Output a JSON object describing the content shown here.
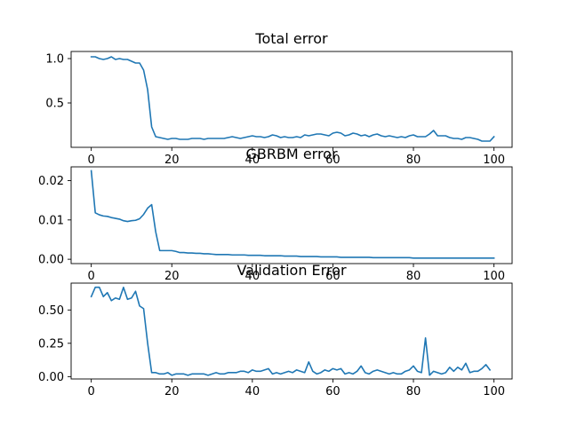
{
  "chart_data": [
    {
      "type": "line",
      "title": "Total error",
      "xlabel": "",
      "ylabel": "",
      "xlim": [
        -5,
        104.5
      ],
      "ylim": [
        0.0,
        1.08
      ],
      "xticks": [
        0,
        20,
        40,
        60,
        80,
        100
      ],
      "yticks": [
        0.5,
        1.0
      ],
      "ytick_labels": [
        "0.5",
        "1.0"
      ],
      "grid": false,
      "color": "#1f77b4",
      "series": [
        {
          "values": [
            1.02,
            1.02,
            1.0,
            0.99,
            1.0,
            1.02,
            0.99,
            1.0,
            0.99,
            0.99,
            0.97,
            0.95,
            0.95,
            0.87,
            0.65,
            0.23,
            0.12,
            0.11,
            0.1,
            0.09,
            0.1,
            0.1,
            0.09,
            0.09,
            0.09,
            0.1,
            0.1,
            0.1,
            0.09,
            0.1,
            0.1,
            0.1,
            0.1,
            0.1,
            0.11,
            0.12,
            0.11,
            0.1,
            0.11,
            0.12,
            0.13,
            0.12,
            0.12,
            0.11,
            0.12,
            0.14,
            0.13,
            0.11,
            0.12,
            0.11,
            0.11,
            0.12,
            0.11,
            0.14,
            0.13,
            0.14,
            0.15,
            0.15,
            0.14,
            0.13,
            0.16,
            0.17,
            0.16,
            0.13,
            0.14,
            0.16,
            0.15,
            0.13,
            0.14,
            0.12,
            0.14,
            0.15,
            0.13,
            0.12,
            0.13,
            0.12,
            0.11,
            0.12,
            0.11,
            0.13,
            0.14,
            0.12,
            0.12,
            0.12,
            0.15,
            0.19,
            0.13,
            0.13,
            0.13,
            0.11,
            0.1,
            0.1,
            0.09,
            0.11,
            0.11,
            0.1,
            0.09,
            0.07,
            0.07,
            0.07,
            0.12
          ]
        }
      ]
    },
    {
      "type": "line",
      "title": "GBRBM error",
      "xlabel": "",
      "ylabel": "",
      "xlim": [
        -5,
        104.5
      ],
      "ylim": [
        -0.0011,
        0.0235
      ],
      "xticks": [
        0,
        20,
        40,
        60,
        80,
        100
      ],
      "yticks": [
        0.0,
        0.01,
        0.02
      ],
      "ytick_labels": [
        "0.00",
        "0.01",
        "0.02"
      ],
      "grid": false,
      "color": "#1f77b4",
      "series": [
        {
          "values": [
            0.0225,
            0.0118,
            0.0113,
            0.011,
            0.0109,
            0.0106,
            0.0104,
            0.0102,
            0.0098,
            0.0096,
            0.0098,
            0.0099,
            0.0103,
            0.0114,
            0.013,
            0.0139,
            0.007,
            0.0022,
            0.0022,
            0.0022,
            0.0022,
            0.002,
            0.0017,
            0.0017,
            0.0016,
            0.0016,
            0.0015,
            0.0015,
            0.0014,
            0.0014,
            0.0013,
            0.0012,
            0.0012,
            0.0012,
            0.0012,
            0.0011,
            0.0011,
            0.0011,
            0.0011,
            0.001,
            0.001,
            0.001,
            0.001,
            0.0009,
            0.0009,
            0.0009,
            0.0009,
            0.0009,
            0.0008,
            0.0008,
            0.0008,
            0.0008,
            0.0007,
            0.0007,
            0.0007,
            0.0007,
            0.0007,
            0.0006,
            0.0006,
            0.0006,
            0.0006,
            0.0006,
            0.0005,
            0.0005,
            0.0005,
            0.0005,
            0.0005,
            0.0005,
            0.0005,
            0.0005,
            0.0004,
            0.0004,
            0.0004,
            0.0004,
            0.0004,
            0.0004,
            0.0004,
            0.0004,
            0.0004,
            0.0004,
            0.0003,
            0.0003,
            0.0003,
            0.0003,
            0.0003,
            0.0003,
            0.0003,
            0.0003,
            0.0003,
            0.0003,
            0.0003,
            0.0003,
            0.0003,
            0.0003,
            0.0003,
            0.0003,
            0.0003,
            0.0003,
            0.0003,
            0.0003,
            0.0003
          ]
        }
      ]
    },
    {
      "type": "line",
      "title": "Validation Error",
      "xlabel": "",
      "ylabel": "",
      "xlim": [
        -5,
        104.5
      ],
      "ylim": [
        -0.0176,
        0.7015
      ],
      "xticks": [
        0,
        20,
        40,
        60,
        80,
        100
      ],
      "yticks": [
        0.0,
        0.25,
        0.5
      ],
      "ytick_labels": [
        "0.00",
        "0.25",
        "0.50"
      ],
      "grid": false,
      "color": "#1f77b4",
      "series": [
        {
          "values": [
            0.6,
            0.67,
            0.67,
            0.6,
            0.63,
            0.57,
            0.59,
            0.58,
            0.67,
            0.58,
            0.59,
            0.64,
            0.53,
            0.51,
            0.25,
            0.03,
            0.03,
            0.02,
            0.02,
            0.03,
            0.01,
            0.02,
            0.02,
            0.02,
            0.01,
            0.02,
            0.02,
            0.02,
            0.02,
            0.01,
            0.02,
            0.03,
            0.02,
            0.02,
            0.03,
            0.03,
            0.03,
            0.04,
            0.04,
            0.03,
            0.05,
            0.04,
            0.04,
            0.05,
            0.06,
            0.02,
            0.03,
            0.02,
            0.03,
            0.04,
            0.03,
            0.05,
            0.04,
            0.03,
            0.11,
            0.04,
            0.02,
            0.03,
            0.05,
            0.04,
            0.06,
            0.05,
            0.06,
            0.02,
            0.03,
            0.02,
            0.04,
            0.08,
            0.03,
            0.02,
            0.04,
            0.05,
            0.04,
            0.03,
            0.02,
            0.03,
            0.02,
            0.02,
            0.04,
            0.05,
            0.08,
            0.04,
            0.03,
            0.29,
            0.01,
            0.04,
            0.03,
            0.02,
            0.03,
            0.07,
            0.04,
            0.07,
            0.05,
            0.1,
            0.03,
            0.04,
            0.04,
            0.06,
            0.09,
            0.05
          ]
        }
      ]
    }
  ]
}
